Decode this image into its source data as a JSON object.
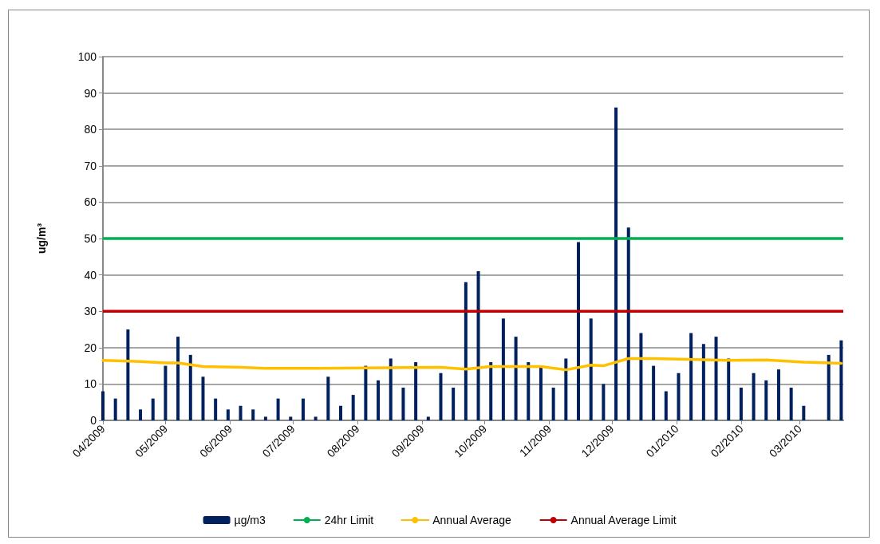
{
  "chart_data": {
    "type": "bar",
    "ylabel": "ug/m³",
    "x": [
      "2009-04-01",
      "2009-04-07",
      "2009-04-13",
      "2009-04-19",
      "2009-04-25",
      "2009-05-01",
      "2009-05-07",
      "2009-05-13",
      "2009-05-19",
      "2009-05-25",
      "2009-05-31",
      "2009-06-06",
      "2009-06-12",
      "2009-06-18",
      "2009-06-24",
      "2009-06-30",
      "2009-07-06",
      "2009-07-12",
      "2009-07-18",
      "2009-07-24",
      "2009-07-30",
      "2009-08-05",
      "2009-08-11",
      "2009-08-17",
      "2009-08-23",
      "2009-08-29",
      "2009-09-04",
      "2009-09-10",
      "2009-09-16",
      "2009-09-22",
      "2009-09-28",
      "2009-10-04",
      "2009-10-10",
      "2009-10-16",
      "2009-10-22",
      "2009-10-28",
      "2009-11-03",
      "2009-11-09",
      "2009-11-15",
      "2009-11-21",
      "2009-11-27",
      "2009-12-03",
      "2009-12-09",
      "2009-12-15",
      "2009-12-21",
      "2009-12-27",
      "2010-01-02",
      "2010-01-08",
      "2010-01-14",
      "2010-01-20",
      "2010-01-26",
      "2010-02-01",
      "2010-02-07",
      "2010-02-13",
      "2010-02-19",
      "2010-02-25",
      "2010-03-03",
      "2010-03-09",
      "2010-03-15",
      "2010-03-21"
    ],
    "series": [
      {
        "name": "µg/m3",
        "color": "#002060",
        "values": [
          8,
          6,
          25,
          3,
          6,
          15,
          23,
          18,
          12,
          6,
          3,
          4,
          3,
          1,
          6,
          1,
          6,
          1,
          12,
          4,
          7,
          15,
          11,
          17,
          9,
          16,
          1,
          13,
          9,
          38,
          41,
          16,
          28,
          23,
          16,
          15,
          9,
          17,
          49,
          28,
          10,
          86,
          53,
          24,
          15,
          8,
          13,
          24,
          21,
          23,
          17,
          9,
          13,
          11,
          14,
          9,
          4,
          null,
          18,
          22
        ]
      },
      {
        "name": "Annual Average",
        "type": "line",
        "color": "#ffc000",
        "x": [
          "2009-04-01",
          "2009-04-19",
          "2009-05-01",
          "2009-05-07",
          "2009-05-19",
          "2009-06-06",
          "2009-06-18",
          "2009-07-12",
          "2009-08-17",
          "2009-09-10",
          "2009-09-22",
          "2009-10-04",
          "2009-10-28",
          "2009-11-09",
          "2009-11-21",
          "2009-11-27",
          "2009-12-09",
          "2009-12-21",
          "2010-01-26",
          "2010-02-13",
          "2010-03-03",
          "2010-03-21"
        ],
        "values": [
          16.5,
          16.2,
          15.8,
          15.8,
          14.8,
          14.6,
          14.3,
          14.3,
          14.5,
          14.6,
          14.1,
          14.8,
          14.8,
          13.9,
          15.2,
          15.0,
          17.0,
          17.0,
          16.5,
          16.6,
          16.0,
          15.7
        ]
      }
    ],
    "ref_lines": [
      {
        "axis": "y",
        "value": 50,
        "label": "24hr Limit",
        "color": "#00b050",
        "line_style": "solid"
      },
      {
        "axis": "y",
        "value": 30,
        "label": "Annual Average Limit",
        "color": "#c00000",
        "line_style": "solid"
      }
    ],
    "xlim": [
      "2009-04-01",
      "2010-03-22"
    ],
    "xticks": [
      {
        "value": "2009-04-01",
        "label": "04/2009"
      },
      {
        "value": "2009-05-01",
        "label": "05/2009"
      },
      {
        "value": "2009-06-01",
        "label": "06/2009"
      },
      {
        "value": "2009-07-01",
        "label": "07/2009"
      },
      {
        "value": "2009-08-01",
        "label": "08/2009"
      },
      {
        "value": "2009-09-01",
        "label": "09/2009"
      },
      {
        "value": "2009-10-01",
        "label": "10/2009"
      },
      {
        "value": "2009-11-01",
        "label": "11/2009"
      },
      {
        "value": "2009-12-01",
        "label": "12/2009"
      },
      {
        "value": "2010-01-01",
        "label": "01/2010"
      },
      {
        "value": "2010-02-01",
        "label": "02/2010"
      },
      {
        "value": "2010-03-01",
        "label": "03/2010"
      }
    ],
    "ylim": [
      0,
      100
    ],
    "yticks": [
      0,
      10,
      20,
      30,
      40,
      50,
      60,
      70,
      80,
      90,
      100
    ],
    "grid": "y",
    "legend": "bottom",
    "marker": "none",
    "line_style": "solid"
  }
}
